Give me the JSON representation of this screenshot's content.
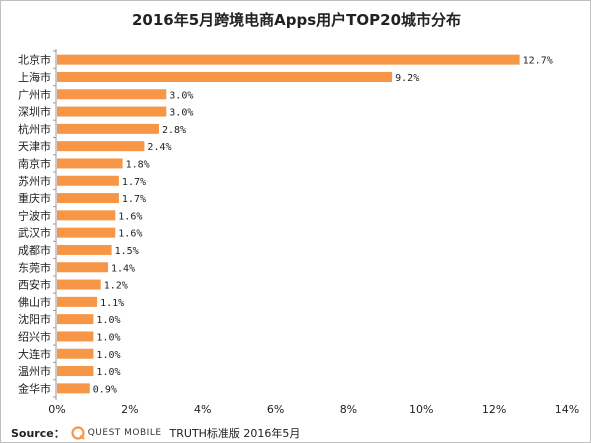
{
  "chart_data": {
    "type": "bar",
    "orientation": "horizontal",
    "title": "2016年5月跨境电商Apps用户TOP20城市分布",
    "categories": [
      "北京市",
      "上海市",
      "广州市",
      "深圳市",
      "杭州市",
      "天津市",
      "南京市",
      "苏州市",
      "重庆市",
      "宁波市",
      "武汉市",
      "成都市",
      "东莞市",
      "西安市",
      "佛山市",
      "沈阳市",
      "绍兴市",
      "大连市",
      "温州市",
      "金华市"
    ],
    "values": [
      12.7,
      9.2,
      3.0,
      3.0,
      2.8,
      2.4,
      1.8,
      1.7,
      1.7,
      1.6,
      1.6,
      1.5,
      1.4,
      1.2,
      1.1,
      1.0,
      1.0,
      1.0,
      1.0,
      0.9
    ],
    "value_labels": [
      "12.7%",
      "9.2%",
      "3.0%",
      "3.0%",
      "2.8%",
      "2.4%",
      "1.8%",
      "1.7%",
      "1.7%",
      "1.6%",
      "1.6%",
      "1.5%",
      "1.4%",
      "1.2%",
      "1.1%",
      "1.0%",
      "1.0%",
      "1.0%",
      "1.0%",
      "0.9%"
    ],
    "x_ticks": [
      "0%",
      "2%",
      "4%",
      "6%",
      "8%",
      "10%",
      "12%",
      "14%"
    ],
    "xlim": [
      0,
      14
    ],
    "grid": false,
    "bar_color": "#F79646"
  },
  "footer": {
    "source_label": "Source：",
    "logo_text": "QUEST MOBILE",
    "note": "TRUTH标准版 2016年5月"
  },
  "colors": {
    "accent": "#F79646",
    "logo": "#F79646"
  }
}
